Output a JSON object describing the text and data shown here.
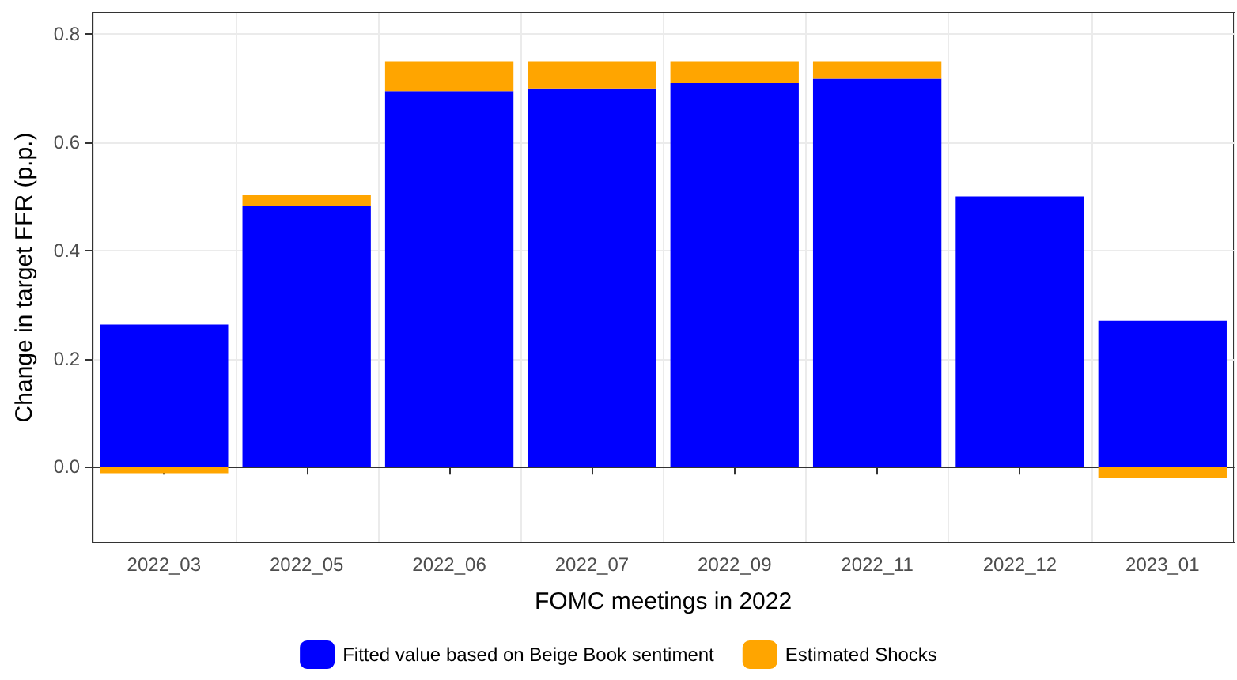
{
  "chart_data": {
    "type": "bar",
    "stacked": true,
    "xlabel": "FOMC meetings in 2022",
    "ylabel": "Change in target FFR (p.p.)",
    "categories": [
      "2022_03",
      "2022_05",
      "2022_06",
      "2022_07",
      "2022_09",
      "2022_11",
      "2022_12",
      "2023_01"
    ],
    "series": [
      {
        "name": "Fitted value based on Beige Book sentiment",
        "color": "#0000ff",
        "values": [
          0.263,
          0.482,
          0.695,
          0.7,
          0.71,
          0.718,
          0.5,
          0.27
        ]
      },
      {
        "name": "Estimated Shocks",
        "color": "#ffa500",
        "values": [
          -0.012,
          0.02,
          0.055,
          0.05,
          0.04,
          0.032,
          0,
          -0.02
        ]
      }
    ],
    "ylim": [
      -0.14,
      0.84
    ],
    "yticks": [
      {
        "value": 0,
        "label": "0.0"
      },
      {
        "value": 0.2,
        "label": "0.2"
      },
      {
        "value": 0.4,
        "label": "0.4"
      },
      {
        "value": 0.6,
        "label": "0.6"
      },
      {
        "value": 0.8,
        "label": "0.8"
      }
    ],
    "grid": true,
    "legend": "bottom"
  }
}
